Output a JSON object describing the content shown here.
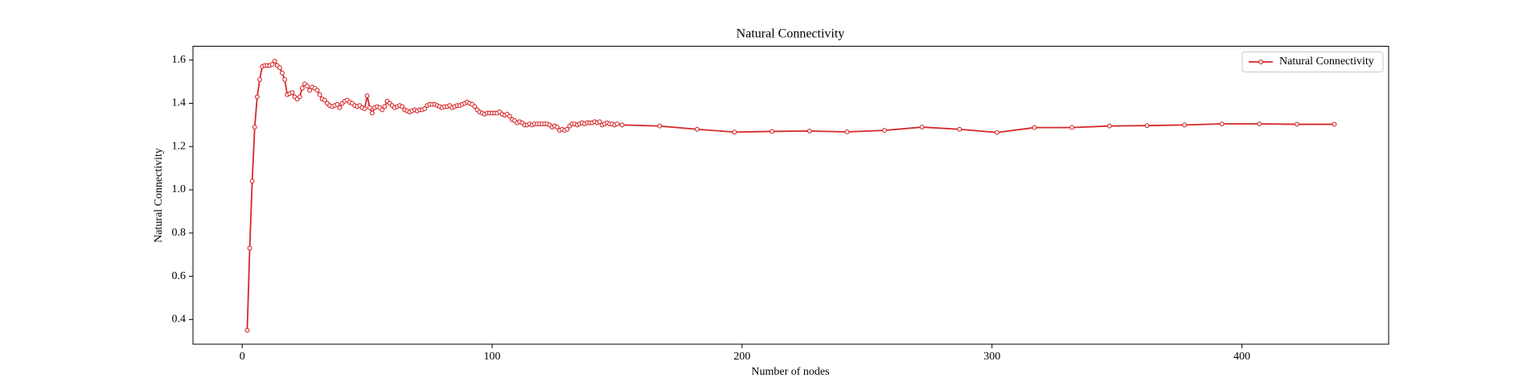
{
  "chart_data": {
    "type": "line",
    "title": "Natural Connectivity",
    "x_label": "Number of nodes",
    "y_label": "Natural Connectivity",
    "x": [
      2,
      3,
      4,
      5,
      6,
      7,
      8,
      9,
      10,
      11,
      12,
      13,
      14,
      15,
      16,
      17,
      18,
      19,
      20,
      21,
      22,
      23,
      24,
      25,
      26,
      27,
      28,
      29,
      30,
      31,
      32,
      33,
      34,
      35,
      36,
      37,
      38,
      39,
      40,
      41,
      42,
      43,
      44,
      45,
      46,
      47,
      48,
      49,
      50,
      51,
      52,
      53,
      54,
      55,
      56,
      57,
      58,
      59,
      60,
      61,
      62,
      63,
      64,
      65,
      66,
      67,
      68,
      69,
      70,
      71,
      72,
      73,
      74,
      75,
      76,
      77,
      78,
      79,
      80,
      81,
      82,
      83,
      84,
      85,
      86,
      87,
      88,
      89,
      90,
      91,
      92,
      93,
      94,
      95,
      96,
      97,
      98,
      99,
      100,
      101,
      102,
      103,
      104,
      105,
      106,
      107,
      108,
      109,
      110,
      111,
      112,
      113,
      114,
      115,
      116,
      117,
      118,
      119,
      120,
      121,
      122,
      123,
      124,
      125,
      126,
      127,
      128,
      129,
      130,
      131,
      132,
      133,
      134,
      135,
      136,
      137,
      138,
      139,
      140,
      141,
      142,
      143,
      144,
      145,
      146,
      147,
      148,
      149,
      150,
      152,
      167,
      182,
      197,
      212,
      227,
      242,
      257,
      272,
      287,
      302,
      317,
      332,
      347,
      362,
      377,
      392,
      407,
      422,
      437
    ],
    "series": [
      {
        "name": "Natural Connectivity",
        "color": "#d62728",
        "values": [
          0.35,
          0.73,
          1.04,
          1.29,
          1.43,
          1.51,
          1.57,
          1.575,
          1.575,
          1.575,
          1.58,
          1.595,
          1.575,
          1.565,
          1.54,
          1.51,
          1.44,
          1.445,
          1.45,
          1.43,
          1.42,
          1.43,
          1.47,
          1.49,
          1.48,
          1.46,
          1.475,
          1.47,
          1.46,
          1.44,
          1.42,
          1.415,
          1.4,
          1.39,
          1.385,
          1.39,
          1.395,
          1.38,
          1.4,
          1.41,
          1.415,
          1.405,
          1.4,
          1.39,
          1.385,
          1.39,
          1.38,
          1.375,
          1.435,
          1.38,
          1.355,
          1.38,
          1.385,
          1.38,
          1.37,
          1.385,
          1.41,
          1.4,
          1.39,
          1.38,
          1.385,
          1.39,
          1.385,
          1.37,
          1.365,
          1.36,
          1.365,
          1.37,
          1.365,
          1.37,
          1.37,
          1.375,
          1.39,
          1.395,
          1.395,
          1.395,
          1.39,
          1.385,
          1.38,
          1.385,
          1.385,
          1.39,
          1.38,
          1.385,
          1.39,
          1.39,
          1.395,
          1.4,
          1.405,
          1.4,
          1.395,
          1.385,
          1.37,
          1.36,
          1.355,
          1.35,
          1.355,
          1.355,
          1.355,
          1.355,
          1.355,
          1.36,
          1.35,
          1.345,
          1.35,
          1.34,
          1.325,
          1.32,
          1.31,
          1.315,
          1.31,
          1.3,
          1.3,
          1.305,
          1.3,
          1.305,
          1.305,
          1.305,
          1.305,
          1.305,
          1.305,
          1.3,
          1.29,
          1.295,
          1.29,
          1.275,
          1.28,
          1.275,
          1.28,
          1.295,
          1.305,
          1.305,
          1.3,
          1.305,
          1.31,
          1.305,
          1.31,
          1.31,
          1.31,
          1.315,
          1.31,
          1.315,
          1.3,
          1.305,
          1.31,
          1.305,
          1.305,
          1.3,
          1.305,
          1.3,
          1.295,
          1.28,
          1.267,
          1.27,
          1.272,
          1.268,
          1.275,
          1.29,
          1.28,
          1.265,
          1.288,
          1.288,
          1.295,
          1.297,
          1.3,
          1.305,
          1.305,
          1.303,
          1.303
        ]
      }
    ],
    "xlim": [
      -19.7,
      458.7
    ],
    "ylim": [
      0.286,
      1.664
    ],
    "xticks": [
      0,
      100,
      200,
      300,
      400
    ],
    "yticks": [
      0.4,
      0.6,
      0.8,
      {
        "value": 1,
        "label": "1.0"
      },
      1.2,
      1.4,
      1.6
    ],
    "legend": "upper right",
    "grid": false
  }
}
